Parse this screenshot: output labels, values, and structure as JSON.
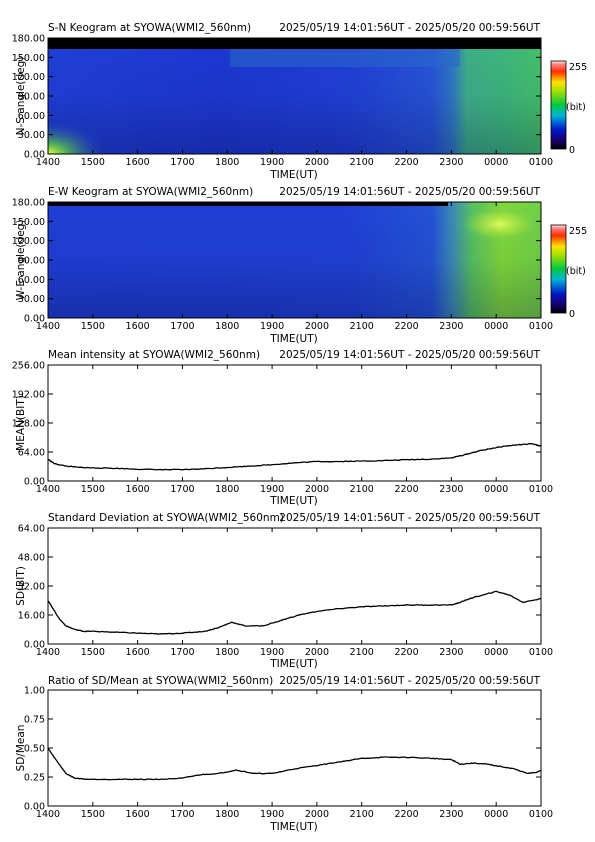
{
  "chart_data": [
    {
      "type": "heatmap",
      "title": "S-N Keogram at SYOWA(WMI2_560nm)",
      "time_range": "2025/05/19 14:01:56UT - 2025/05/20 00:59:56UT",
      "xlabel": "TIME(UT)",
      "ylabel": "N-S angle(deg)",
      "xticks": [
        "1400",
        "1500",
        "1600",
        "1700",
        "1800",
        "1900",
        "2000",
        "2100",
        "2200",
        "2300",
        "0000",
        "0100"
      ],
      "yticks": [
        "0.00",
        "30.00",
        "60.00",
        "90.00",
        "120.00",
        "150.00",
        "180.00"
      ],
      "ylim": [
        0,
        180
      ],
      "colorbar": {
        "min_label": "0",
        "max_label": "255",
        "unit_label": "(bit)"
      }
    },
    {
      "type": "heatmap",
      "title": "E-W Keogram at SYOWA(WMI2_560nm)",
      "time_range": "2025/05/19 14:01:56UT - 2025/05/20 00:59:56UT",
      "xlabel": "TIME(UT)",
      "ylabel": "W-E angle(deg)",
      "xticks": [
        "1400",
        "1500",
        "1600",
        "1700",
        "1800",
        "1900",
        "2000",
        "2100",
        "2200",
        "2300",
        "0000",
        "0100"
      ],
      "yticks": [
        "0.00",
        "30.00",
        "60.00",
        "90.00",
        "120.00",
        "150.00",
        "180.00"
      ],
      "ylim": [
        0,
        180
      ],
      "colorbar": {
        "min_label": "0",
        "max_label": "255",
        "unit_label": "(bit)"
      }
    },
    {
      "type": "line",
      "title": "Mean intensity at SYOWA(WMI2_560nm)",
      "time_range": "2025/05/19 14:01:56UT - 2025/05/20 00:59:56UT",
      "xlabel": "TIME(UT)",
      "ylabel": "MEAN(BIT)",
      "xticks": [
        "1400",
        "1500",
        "1600",
        "1700",
        "1800",
        "1900",
        "2000",
        "2100",
        "2200",
        "2300",
        "0000",
        "0100"
      ],
      "yticks": [
        "0.00",
        "64.00",
        "128.00",
        "192.00",
        "256.00"
      ],
      "ylim": [
        0,
        256
      ],
      "x_hours_since_1400": [
        0,
        0.15,
        0.4,
        0.7,
        1.0,
        1.5,
        2.0,
        2.5,
        3.0,
        3.5,
        4.0,
        4.5,
        5.0,
        5.5,
        6.0,
        6.5,
        7.0,
        7.5,
        8.0,
        8.5,
        9.0,
        9.3,
        9.6,
        9.9,
        10.2,
        10.5,
        10.8,
        11.0
      ],
      "values": [
        48,
        38,
        33,
        30,
        29,
        28,
        26,
        25,
        25,
        27,
        30,
        33,
        36,
        40,
        43,
        43,
        44,
        45,
        47,
        48,
        51,
        58,
        66,
        72,
        77,
        80,
        82,
        77
      ]
    },
    {
      "type": "line",
      "title": "Standard Deviation at SYOWA(WMI2_560nm)",
      "time_range": "2025/05/19 14:01:56UT - 2025/05/20 00:59:56UT",
      "xlabel": "TIME(UT)",
      "ylabel": "SD(BIT)",
      "xticks": [
        "1400",
        "1500",
        "1600",
        "1700",
        "1800",
        "1900",
        "2000",
        "2100",
        "2200",
        "2300",
        "0000",
        "0100"
      ],
      "yticks": [
        "0.00",
        "16.00",
        "32.00",
        "48.00",
        "64.00"
      ],
      "ylim": [
        0,
        64
      ],
      "x_hours_since_1400": [
        0,
        0.1,
        0.25,
        0.4,
        0.6,
        0.8,
        1.0,
        1.5,
        2.0,
        2.5,
        3.0,
        3.5,
        3.8,
        4.1,
        4.4,
        4.8,
        5.2,
        5.6,
        6.0,
        6.5,
        7.0,
        7.5,
        8.0,
        8.5,
        9.0,
        9.2,
        9.4,
        9.7,
        10.0,
        10.3,
        10.6,
        11.0
      ],
      "values": [
        24,
        20,
        14,
        10,
        8,
        7,
        7,
        6.5,
        6,
        5.5,
        6,
        7,
        9,
        12,
        10,
        10,
        13,
        16,
        18,
        19.5,
        20.5,
        21,
        21.5,
        21.5,
        21.5,
        23,
        25,
        27,
        29,
        27,
        23,
        25
      ]
    },
    {
      "type": "line",
      "title": "Ratio of SD/Mean at SYOWA(WMI2_560nm)",
      "time_range": "2025/05/19 14:01:56UT - 2025/05/20 00:59:56UT",
      "xlabel": "TIME(UT)",
      "ylabel": "SD/Mean",
      "xticks": [
        "1400",
        "1500",
        "1600",
        "1700",
        "1800",
        "1900",
        "2000",
        "2100",
        "2200",
        "2300",
        "0000",
        "0100"
      ],
      "yticks": [
        "0.00",
        "0.25",
        "0.50",
        "0.75",
        "1.00"
      ],
      "ylim": [
        0,
        1.0
      ],
      "x_hours_since_1400": [
        0,
        0.1,
        0.25,
        0.4,
        0.6,
        0.9,
        1.5,
        2.0,
        2.5,
        3.0,
        3.4,
        3.8,
        4.2,
        4.6,
        5.0,
        5.5,
        6.0,
        6.5,
        7.0,
        7.5,
        8.0,
        8.6,
        9.0,
        9.2,
        9.5,
        9.8,
        10.1,
        10.4,
        10.7,
        10.9,
        11.0
      ],
      "values": [
        0.5,
        0.44,
        0.36,
        0.28,
        0.24,
        0.23,
        0.23,
        0.23,
        0.23,
        0.24,
        0.27,
        0.28,
        0.31,
        0.28,
        0.28,
        0.32,
        0.35,
        0.38,
        0.41,
        0.42,
        0.42,
        0.41,
        0.4,
        0.36,
        0.37,
        0.36,
        0.34,
        0.32,
        0.28,
        0.29,
        0.31
      ]
    }
  ]
}
